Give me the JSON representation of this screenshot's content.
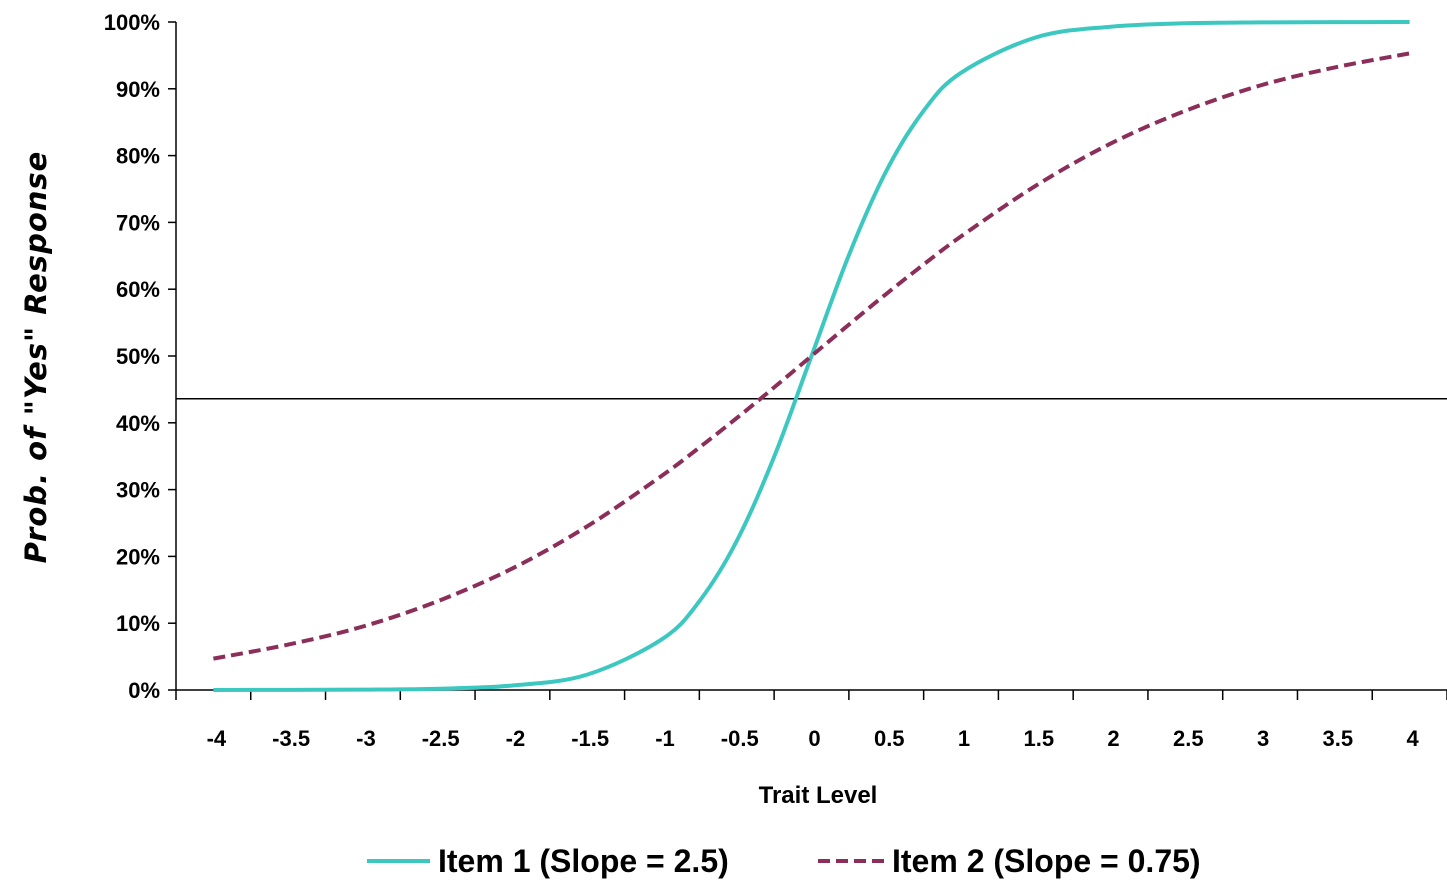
{
  "chart_data": {
    "type": "line",
    "xlabel": "Trait Level",
    "ylabel": "Prob. of \"Yes\" Response",
    "xlim": [
      -4.25,
      4.25
    ],
    "ylim": [
      0,
      100
    ],
    "x_ticks": [
      -4,
      -3.5,
      -3,
      -2.5,
      -2,
      -1.5,
      -1,
      -0.5,
      0,
      0.5,
      1,
      1.5,
      2,
      2.5,
      3,
      3.5,
      4
    ],
    "x_tick_labels": [
      "-4",
      "-3.5",
      "-3",
      "-2.5",
      "-2",
      "-1.5",
      "-1",
      "-0.5",
      "0",
      "0.5",
      "1",
      "1.5",
      "2",
      "2.5",
      "3",
      "3.5",
      "4"
    ],
    "y_ticks": [
      0,
      10,
      20,
      30,
      40,
      50,
      60,
      70,
      80,
      90,
      100
    ],
    "y_tick_labels": [
      "0%",
      "10%",
      "20%",
      "30%",
      "40%",
      "50%",
      "60%",
      "70%",
      "80%",
      "90%",
      "100%"
    ],
    "grid": false,
    "legend_position": "bottom",
    "reference_line": {
      "y": 43.6,
      "color": "#000000"
    },
    "x": [
      -4,
      -3.5,
      -3,
      -2.5,
      -2,
      -1.5,
      -1,
      -0.75,
      -0.5,
      -0.25,
      0,
      0.25,
      0.5,
      0.75,
      1,
      1.5,
      2,
      2.5,
      3,
      3.5,
      4
    ],
    "series": [
      {
        "name": "Item 1 (Slope = 2.5)",
        "color": "#3CC8C0",
        "style": "solid",
        "values": [
          0.0,
          0.02,
          0.06,
          0.19,
          0.67,
          2.3,
          7.6,
          13.3,
          22.3,
          34.9,
          50.0,
          65.1,
          77.7,
          86.7,
          92.4,
          97.7,
          99.3,
          99.8,
          99.94,
          99.98,
          100.0
        ]
      },
      {
        "name": "Item 2 (Slope = 0.75)",
        "color": "#8B2F5A",
        "style": "dashed",
        "values": [
          4.7,
          6.8,
          9.5,
          13.3,
          18.2,
          24.5,
          32.1,
          36.3,
          40.7,
          45.3,
          50.0,
          54.7,
          59.3,
          63.7,
          67.9,
          75.5,
          81.8,
          86.7,
          90.5,
          93.2,
          95.3
        ]
      }
    ]
  }
}
